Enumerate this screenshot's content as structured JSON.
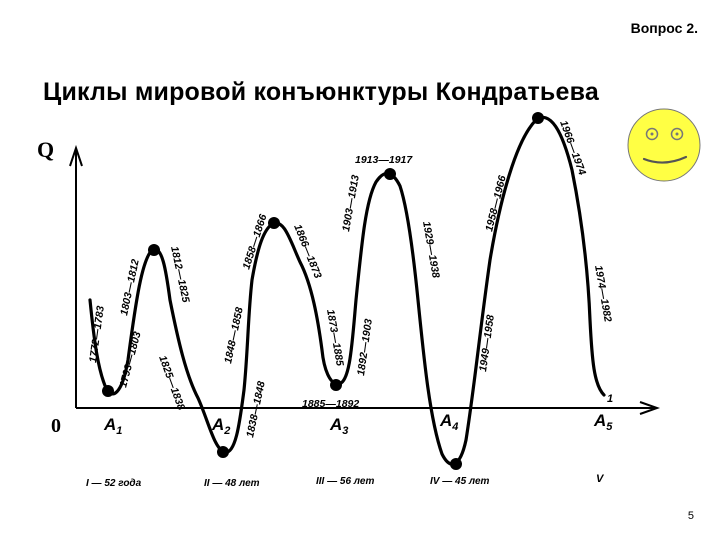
{
  "slide": {
    "question_label": "Вопрос 2.",
    "title": "Циклы мировой конъюнктуры Кондратьева",
    "page_number": "5"
  },
  "diagram": {
    "y_axis_label": "Q",
    "origin_label": "0",
    "x_axis_end_label": "V",
    "curve_end_label": "1",
    "points": [
      {
        "letter": "A",
        "sub": "1"
      },
      {
        "letter": "A",
        "sub": "2"
      },
      {
        "letter": "A",
        "sub": "3"
      },
      {
        "letter": "A",
        "sub": "4"
      },
      {
        "letter": "A",
        "sub": "5"
      }
    ],
    "periods": [
      "1772—1783",
      "1793—1803",
      "1803—1812",
      "1812—1825",
      "1825—1838",
      "1838—1848",
      "1848—1858",
      "1858—1866",
      "1866—1873",
      "1873—1885",
      "1885—1892",
      "1892—1903",
      "1903—1913",
      "1913—1917",
      "1929—1938",
      "1949—1958",
      "1958—1966",
      "1966—1974",
      "1974—1982"
    ],
    "cycles": [
      "I — 52 года",
      "II — 48 лет",
      "III — 56 лет",
      "IV — 45 лет"
    ]
  },
  "colors": {
    "smiley_fill": "#ffff44",
    "line": "#000000"
  },
  "icons": [
    "smiley-face-icon"
  ]
}
